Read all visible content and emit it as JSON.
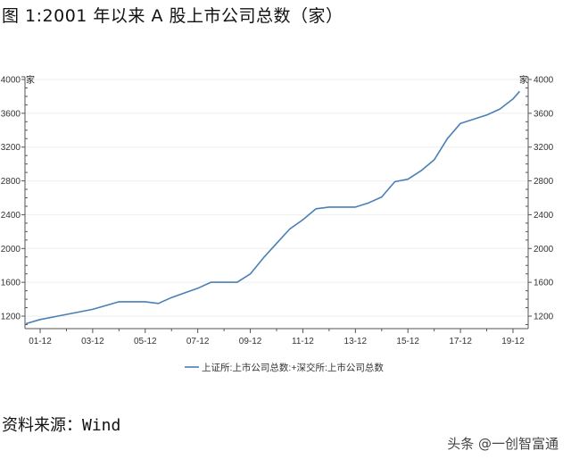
{
  "figure": {
    "title": "图 1:2001 年以来 A 股上市公司总数（家）"
  },
  "source": {
    "label": "资料来源：",
    "value": "Wind"
  },
  "watermark": "头条 @一创智富通",
  "colors": {
    "line": "#4a7fb5",
    "axis": "#555555",
    "grid": "#eeeeee",
    "text": "#333333"
  },
  "chart_data": {
    "type": "line",
    "title": "2001 年以来 A 股上市公司总数（家）",
    "xlabel": "",
    "ylabel": "家",
    "ylabel_right": "家",
    "ylim": [
      1050,
      4000
    ],
    "yticks": [
      1200,
      1600,
      2000,
      2400,
      2800,
      3200,
      3600,
      4000
    ],
    "xticks": [
      "01-12",
      "03-12",
      "05-12",
      "07-12",
      "09-12",
      "11-12",
      "13-12",
      "15-12",
      "17-12",
      "19-12"
    ],
    "grid": true,
    "legend_position": "bottom",
    "dual_axis": true,
    "x": [
      "01-01",
      "01-12",
      "02-12",
      "03-12",
      "04-12",
      "05-12",
      "06-06",
      "06-12",
      "07-12",
      "08-06",
      "08-12",
      "09-06",
      "09-12",
      "10-06",
      "10-12",
      "11-06",
      "11-12",
      "12-06",
      "12-12",
      "13-06",
      "13-12",
      "14-06",
      "14-12",
      "15-06",
      "15-12",
      "16-06",
      "16-12",
      "17-06",
      "17-12",
      "18-06",
      "18-12",
      "19-06",
      "19-12",
      "20-03"
    ],
    "series": [
      {
        "name": "上证所:上市公司总数:+深交所:上市公司总数",
        "values": [
          1110,
          1160,
          1220,
          1280,
          1370,
          1370,
          1350,
          1420,
          1530,
          1600,
          1600,
          1600,
          1700,
          1890,
          2060,
          2230,
          2340,
          2470,
          2490,
          2490,
          2490,
          2540,
          2610,
          2790,
          2820,
          2920,
          3050,
          3300,
          3480,
          3530,
          3580,
          3650,
          3770,
          3860
        ]
      }
    ]
  },
  "legend": {
    "items": [
      {
        "label": "上证所:上市公司总数:+深交所:上市公司总数"
      }
    ]
  },
  "axes": {
    "left_unit": "家",
    "right_unit": "家",
    "y_tick_labels": [
      "4000",
      "3600",
      "3200",
      "2800",
      "2400",
      "2000",
      "1600",
      "1200"
    ],
    "x_tick_labels": [
      "01-12",
      "03-12",
      "05-12",
      "07-12",
      "09-12",
      "11-12",
      "13-12",
      "15-12",
      "17-12",
      "19-12"
    ]
  }
}
